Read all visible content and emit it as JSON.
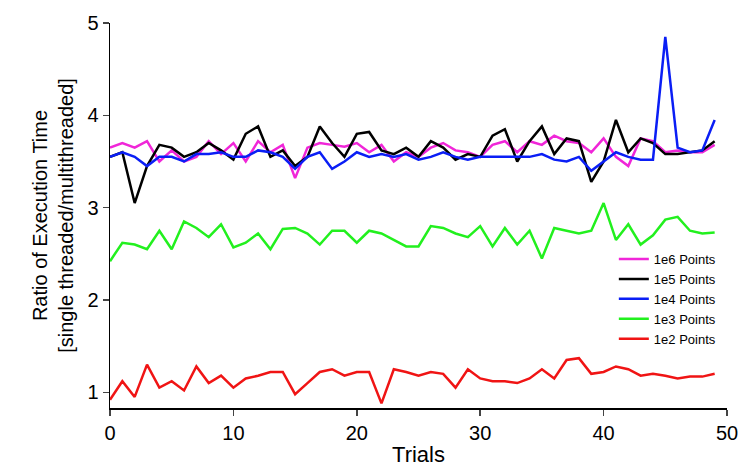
{
  "chart_data": {
    "type": "line",
    "x_label": "Trials",
    "y_label": [
      "Ratio of Execution Time",
      "[single threaded/multithreaded]"
    ],
    "x": [
      0,
      1,
      2,
      3,
      4,
      5,
      6,
      7,
      8,
      9,
      10,
      11,
      12,
      13,
      14,
      15,
      16,
      17,
      18,
      19,
      20,
      21,
      22,
      23,
      24,
      25,
      26,
      27,
      28,
      29,
      30,
      31,
      32,
      33,
      34,
      35,
      36,
      37,
      38,
      39,
      40,
      41,
      42,
      43,
      44,
      45,
      46,
      47,
      48,
      49
    ],
    "xlim": [
      0,
      50
    ],
    "xticks": [
      0,
      10,
      20,
      30,
      40,
      50
    ],
    "ylim": [
      0.83,
      5
    ],
    "yticks": [
      1,
      2,
      3,
      4,
      5
    ],
    "grid": false,
    "legend": "lower right",
    "series": [
      {
        "name": "1e6 Points",
        "color": "#f026d8",
        "values": [
          3.65,
          3.7,
          3.65,
          3.72,
          3.5,
          3.62,
          3.5,
          3.55,
          3.72,
          3.58,
          3.7,
          3.5,
          3.72,
          3.6,
          3.68,
          3.32,
          3.65,
          3.7,
          3.68,
          3.66,
          3.7,
          3.6,
          3.68,
          3.5,
          3.6,
          3.55,
          3.65,
          3.7,
          3.62,
          3.6,
          3.55,
          3.68,
          3.72,
          3.6,
          3.72,
          3.68,
          3.78,
          3.72,
          3.7,
          3.6,
          3.75,
          3.55,
          3.45,
          3.75,
          3.72,
          3.6,
          3.62,
          3.6,
          3.6,
          3.68
        ]
      },
      {
        "name": "1e5 Points",
        "color": "#000000",
        "values": [
          3.55,
          3.6,
          3.05,
          3.45,
          3.68,
          3.65,
          3.55,
          3.6,
          3.7,
          3.62,
          3.52,
          3.8,
          3.88,
          3.55,
          3.62,
          3.45,
          3.55,
          3.88,
          3.7,
          3.55,
          3.8,
          3.82,
          3.62,
          3.58,
          3.65,
          3.55,
          3.72,
          3.65,
          3.52,
          3.58,
          3.55,
          3.78,
          3.85,
          3.5,
          3.72,
          3.88,
          3.58,
          3.75,
          3.72,
          3.28,
          3.5,
          3.95,
          3.6,
          3.75,
          3.7,
          3.58,
          3.58,
          3.6,
          3.62,
          3.72
        ]
      },
      {
        "name": "1e4 Points",
        "color": "#0a1ef5",
        "values": [
          3.55,
          3.6,
          3.55,
          3.45,
          3.55,
          3.55,
          3.5,
          3.58,
          3.58,
          3.6,
          3.55,
          3.55,
          3.62,
          3.6,
          3.55,
          3.42,
          3.55,
          3.6,
          3.42,
          3.5,
          3.6,
          3.55,
          3.58,
          3.55,
          3.58,
          3.52,
          3.55,
          3.6,
          3.55,
          3.52,
          3.55,
          3.55,
          3.55,
          3.55,
          3.55,
          3.58,
          3.52,
          3.5,
          3.55,
          3.4,
          3.5,
          3.6,
          3.55,
          3.52,
          3.52,
          4.85,
          3.65,
          3.6,
          3.62,
          3.95
        ]
      },
      {
        "name": "1e3 Points",
        "color": "#22f01e",
        "values": [
          2.42,
          2.62,
          2.6,
          2.55,
          2.75,
          2.55,
          2.85,
          2.78,
          2.68,
          2.82,
          2.57,
          2.62,
          2.72,
          2.55,
          2.77,
          2.78,
          2.72,
          2.6,
          2.75,
          2.75,
          2.62,
          2.75,
          2.72,
          2.65,
          2.58,
          2.58,
          2.8,
          2.78,
          2.72,
          2.68,
          2.8,
          2.58,
          2.78,
          2.6,
          2.75,
          2.45,
          2.78,
          2.75,
          2.72,
          2.75,
          3.05,
          2.65,
          2.82,
          2.6,
          2.7,
          2.87,
          2.9,
          2.75,
          2.72,
          2.73
        ]
      },
      {
        "name": "1e2 Points",
        "color": "#f01414",
        "values": [
          0.92,
          1.12,
          0.95,
          1.3,
          1.05,
          1.12,
          1.02,
          1.28,
          1.1,
          1.18,
          1.05,
          1.15,
          1.18,
          1.22,
          1.22,
          0.98,
          1.1,
          1.22,
          1.25,
          1.18,
          1.22,
          1.22,
          0.88,
          1.25,
          1.22,
          1.18,
          1.22,
          1.2,
          1.05,
          1.25,
          1.15,
          1.12,
          1.12,
          1.1,
          1.15,
          1.25,
          1.15,
          1.35,
          1.37,
          1.2,
          1.22,
          1.28,
          1.25,
          1.18,
          1.2,
          1.18,
          1.15,
          1.17,
          1.17,
          1.2
        ]
      }
    ]
  }
}
